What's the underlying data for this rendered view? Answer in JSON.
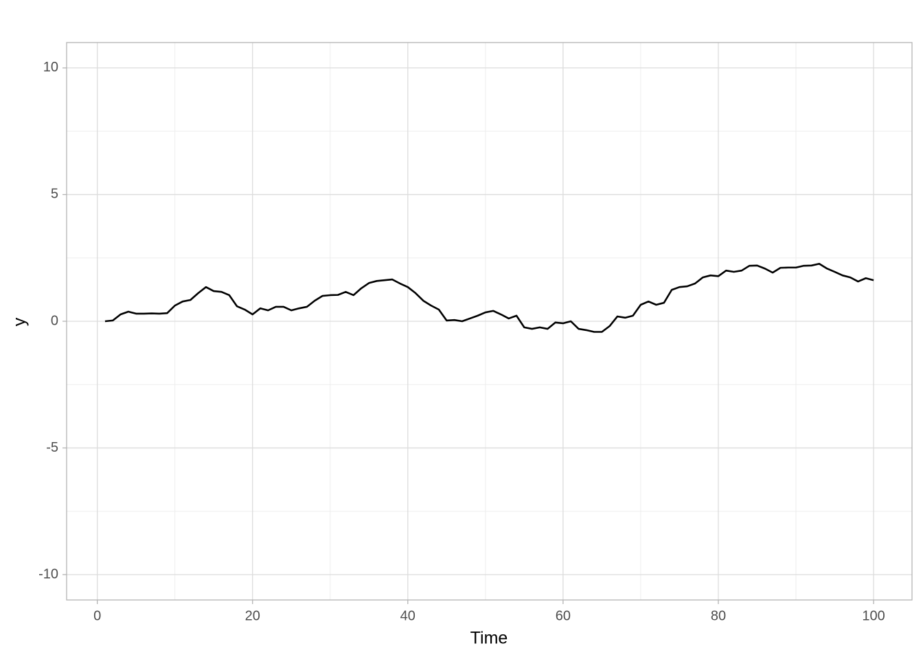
{
  "chart_data": {
    "type": "line",
    "x_label": "Time",
    "y_label": "y",
    "x": [
      1,
      2,
      3,
      4,
      5,
      6,
      7,
      8,
      9,
      10,
      11,
      12,
      13,
      14,
      15,
      16,
      17,
      18,
      19,
      20,
      21,
      22,
      23,
      24,
      25,
      26,
      27,
      28,
      29,
      30,
      31,
      32,
      33,
      34,
      35,
      36,
      37,
      38,
      39,
      40,
      41,
      42,
      43,
      44,
      45,
      46,
      47,
      48,
      49,
      50,
      51,
      52,
      53,
      54,
      55,
      56,
      57,
      58,
      59,
      60,
      61,
      62,
      63,
      64,
      65,
      66,
      67,
      68,
      69,
      70,
      71,
      72,
      73,
      74,
      75,
      76,
      77,
      78,
      79,
      80,
      81,
      82,
      83,
      84,
      85,
      86,
      87,
      88,
      89,
      90,
      91,
      92,
      93,
      94,
      95,
      96,
      97,
      98,
      99,
      100
    ],
    "series": [
      {
        "color": "#000000",
        "values": [
          0,
          0.03,
          0.27,
          0.38,
          0.3,
          0.3,
          0.31,
          0.3,
          0.32,
          0.62,
          0.78,
          0.84,
          1.11,
          1.35,
          1.19,
          1.16,
          1.03,
          0.59,
          0.46,
          0.27,
          0.51,
          0.43,
          0.57,
          0.57,
          0.43,
          0.51,
          0.57,
          0.81,
          1.0,
          1.03,
          1.04,
          1.16,
          1.03,
          1.3,
          1.51,
          1.59,
          1.62,
          1.65,
          1.49,
          1.35,
          1.11,
          0.81,
          0.62,
          0.46,
          0.03,
          0.05,
          0,
          0.11,
          0.22,
          0.35,
          0.41,
          0.27,
          0.11,
          0.22,
          -0.24,
          -0.3,
          -0.24,
          -0.3,
          -0.05,
          -0.08,
          0,
          -0.3,
          -0.35,
          -0.42,
          -0.42,
          -0.19,
          0.19,
          0.14,
          0.22,
          0.65,
          0.78,
          0.65,
          0.73,
          1.24,
          1.35,
          1.38,
          1.49,
          1.73,
          1.81,
          1.78,
          2.0,
          1.95,
          2.0,
          2.19,
          2.2,
          2.08,
          1.92,
          2.11,
          2.12,
          2.12,
          2.19,
          2.2,
          2.27,
          2.08,
          1.95,
          1.81,
          1.73,
          1.57,
          1.7,
          1.62
        ]
      }
    ],
    "xlim": [
      -3.95,
      104.95
    ],
    "ylim": [
      -11,
      11
    ],
    "xticks": [
      0,
      20,
      40,
      60,
      80,
      100
    ],
    "yticks": [
      -10,
      -5,
      0,
      5,
      10
    ],
    "x_minor_grid": [
      10,
      30,
      50,
      70,
      90
    ],
    "y_minor_grid": [
      -7.5,
      -2.5,
      2.5,
      7.5
    ],
    "grid": true
  }
}
